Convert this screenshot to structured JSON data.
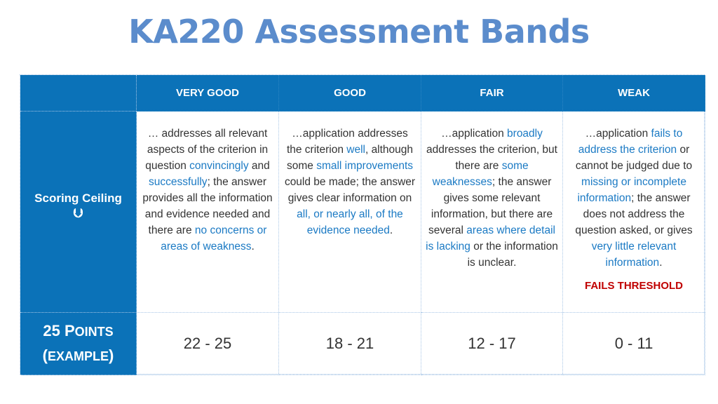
{
  "title": "KA220 Assessment Bands",
  "columns": [
    "VERY GOOD",
    "GOOD",
    "FAIR",
    "WEAK"
  ],
  "row1": {
    "label": "Scoring Ceiling",
    "arrow": "⮋"
  },
  "descriptions": {
    "very_good": [
      {
        "t": "… addresses all relevant aspects of the criterion in question ",
        "h": false
      },
      {
        "t": "convincingly",
        "h": true
      },
      {
        "t": " and ",
        "h": false
      },
      {
        "t": "successfully",
        "h": true
      },
      {
        "t": "; the answer provides all the information and evidence needed and there are ",
        "h": false
      },
      {
        "t": "no concerns or areas of weakness",
        "h": true
      },
      {
        "t": ".",
        "h": false
      }
    ],
    "good": [
      {
        "t": "…application addresses the criterion ",
        "h": false
      },
      {
        "t": "well",
        "h": true
      },
      {
        "t": ", although some ",
        "h": false
      },
      {
        "t": "small improvements",
        "h": true
      },
      {
        "t": " could be made; the answer gives clear information on ",
        "h": false
      },
      {
        "t": "all, or nearly all, of the evidence needed",
        "h": true
      },
      {
        "t": ".",
        "h": false
      }
    ],
    "fair": [
      {
        "t": "…application ",
        "h": false
      },
      {
        "t": "broadly",
        "h": true
      },
      {
        "t": " addresses the criterion, but there are ",
        "h": false
      },
      {
        "t": "some weaknesses",
        "h": true
      },
      {
        "t": "; the answer gives some relevant information, but there are several ",
        "h": false
      },
      {
        "t": "areas where detail is lacking",
        "h": true
      },
      {
        "t": " or the information is unclear.",
        "h": false
      }
    ],
    "weak": [
      {
        "t": "…application ",
        "h": false
      },
      {
        "t": "fails to address the criterion",
        "h": true
      },
      {
        "t": " or cannot be judged due to ",
        "h": false
      },
      {
        "t": "missing or incomplete information",
        "h": true
      },
      {
        "t": "; the answer does not address the question asked, or gives ",
        "h": false
      },
      {
        "t": "very little relevant information",
        "h": true
      },
      {
        "t": ".",
        "h": false
      }
    ],
    "weak_threshold": "FAILS THRESHOLD"
  },
  "row2": {
    "points_num": "25 P",
    "points_word": "OINTS",
    "example_open": "(",
    "example_word": "EXAMPLE",
    "example_close": ")"
  },
  "scores": [
    "22 - 25",
    "18 - 21",
    "12 - 17",
    "0 - 11"
  ],
  "colors": {
    "title": "#5b8ccc",
    "header_bg": "#0b72b8",
    "highlight": "#1b7ac4",
    "threshold": "#c00000",
    "body_text": "#333333"
  }
}
